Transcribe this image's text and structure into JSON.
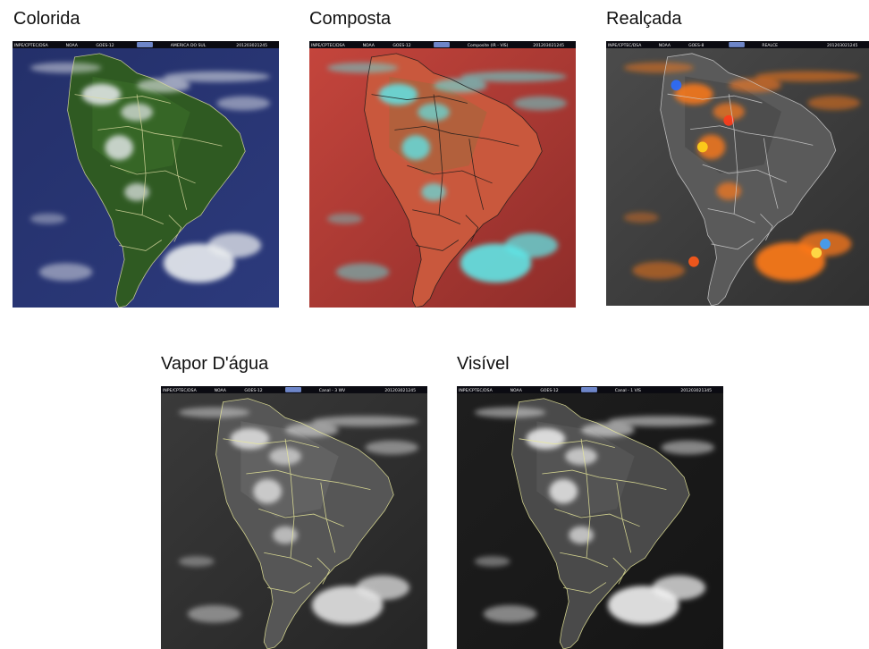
{
  "panels": [
    {
      "id": "colorida",
      "title": "Colorida",
      "header": {
        "left": "INPE/CPTEC/DSA",
        "mid1": "NOAA",
        "mid2": "GOES-12",
        "product": "AMERICA DO SUL",
        "stamp": "201203021245"
      },
      "palette": {
        "ocean": "#24306a",
        "ocean2": "#2c3a7c",
        "land": "#2f5a22",
        "land2": "#3c6e2a",
        "cloud": "#e9ecef",
        "border": "#d9d9a0"
      }
    },
    {
      "id": "composta",
      "title": "Composta",
      "header": {
        "left": "INPE/CPTEC/DSA",
        "mid1": "NOAA",
        "mid2": "GOES-12",
        "product": "Composite (IR - VIS)",
        "stamp": "201203021245"
      },
      "palette": {
        "ocean": "#c4453c",
        "ocean2": "#8f2d2a",
        "land": "#c9583d",
        "land2": "#a3663c",
        "cloud": "#5fe4e6",
        "border": "#1a1a1a"
      }
    },
    {
      "id": "realcada",
      "title": "Realçada",
      "header": {
        "left": "INPE/CPTEC/DSA",
        "mid1": "NOAA",
        "mid2": "GOES-8",
        "product": "REALCE",
        "stamp": "201203021245"
      },
      "palette": {
        "ocean": "#4b4b4b",
        "ocean2": "#303030",
        "land": "#5a5a5a",
        "land2": "#444444",
        "cloud": "#ff7a1a",
        "border": "#cfcfcf"
      }
    },
    {
      "id": "vapor",
      "title": "Vapor D'água",
      "header": {
        "left": "INPE/CPTEC/DSA",
        "mid1": "NOAA",
        "mid2": "GOES-12",
        "product": "Canal - 3  WV",
        "stamp": "201203021245"
      },
      "palette": {
        "ocean": "#3a3a3a",
        "ocean2": "#252525",
        "land": "#565656",
        "land2": "#6a6a6a",
        "cloud": "#e3e3e3",
        "border": "#e8e89a"
      }
    },
    {
      "id": "visivel",
      "title": "Visível",
      "header": {
        "left": "INPE/CPTEC/DSA",
        "mid1": "NOAA",
        "mid2": "GOES-12",
        "product": "Canal - 1  VIS",
        "stamp": "201203021345"
      },
      "palette": {
        "ocean": "#1e1e1e",
        "ocean2": "#151515",
        "land": "#4a4a4a",
        "land2": "#5c5c5c",
        "cloud": "#f1f1f1",
        "border": "#e8e89a"
      }
    }
  ]
}
